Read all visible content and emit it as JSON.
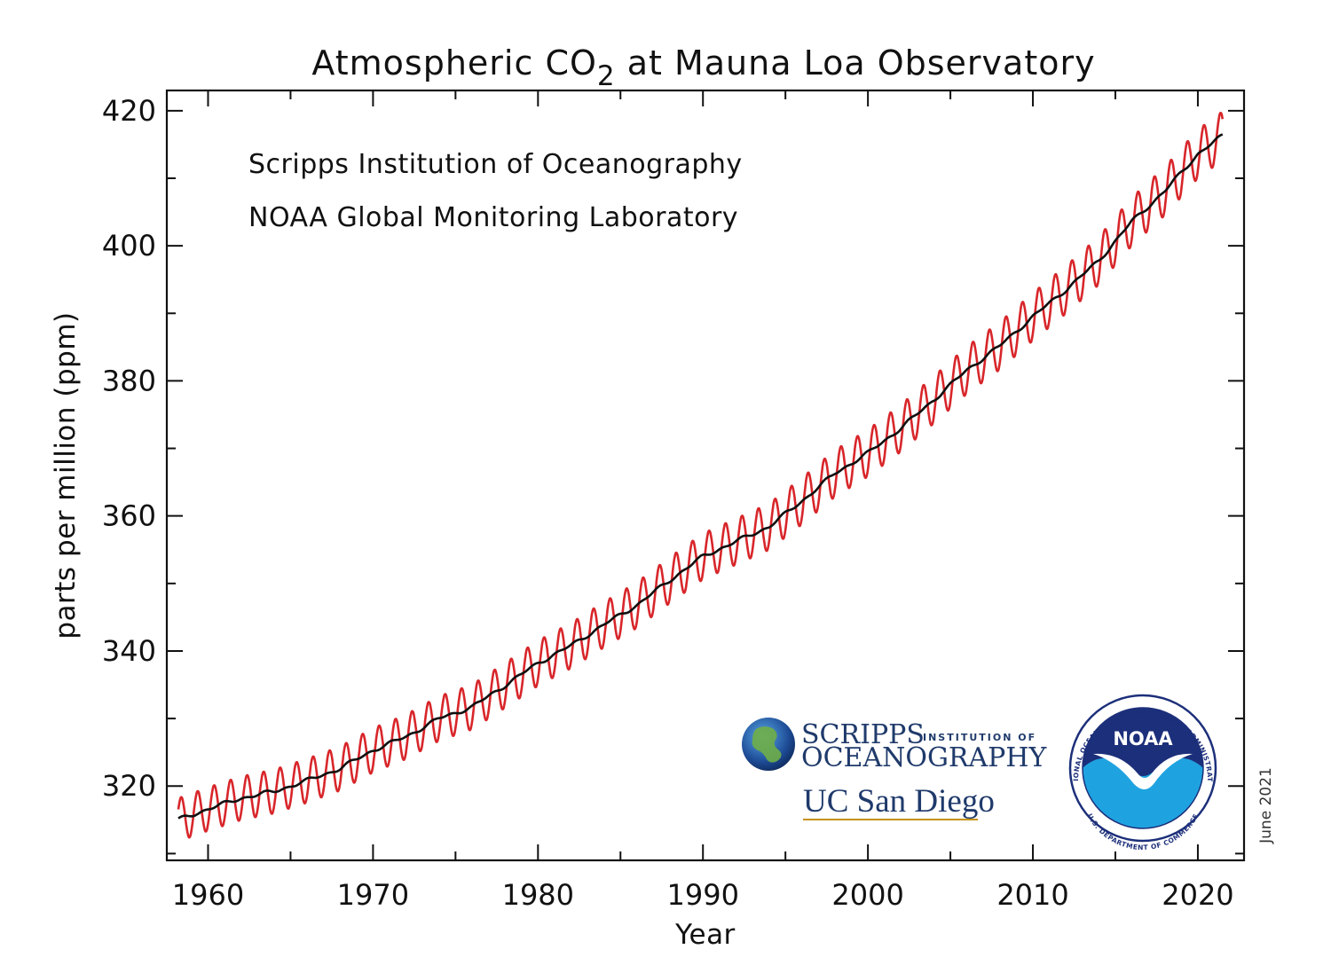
{
  "chart_data": {
    "type": "line",
    "title": "Atmospheric CO",
    "title_subscript": "2",
    "title_suffix": " at Mauna Loa Observatory",
    "credits": [
      "Scripps Institution of Oceanography",
      "NOAA Global Monitoring Laboratory"
    ],
    "xlabel": "Year",
    "ylabel": "parts per million (ppm)",
    "xlim": [
      1957.5,
      2022.8
    ],
    "ylim": [
      309,
      423
    ],
    "xticks": [
      1960,
      1970,
      1980,
      1990,
      2000,
      2010,
      2020
    ],
    "yticks": [
      320,
      340,
      360,
      380,
      400,
      420
    ],
    "xtick_labels": [
      "1960",
      "1970",
      "1980",
      "1990",
      "2000",
      "2010",
      "2020"
    ],
    "ytick_labels": [
      "320",
      "340",
      "360",
      "380",
      "400",
      "420"
    ],
    "grid": false,
    "date_note": "June 2021",
    "series": [
      {
        "color": "#d8262a",
        "style": "monthly",
        "seasonal_amplitude_ppm": 3.2,
        "x": [
          1958.2,
          2021.5
        ]
      },
      {
        "color": "#111111",
        "style": "trend",
        "x": [
          1958.2,
          1960,
          1962,
          1964,
          1966,
          1968,
          1970,
          1972,
          1974,
          1976,
          1978,
          1980,
          1982,
          1984,
          1986,
          1988,
          1990,
          1992,
          1994,
          1996,
          1998,
          2000,
          2002,
          2004,
          2006,
          2008,
          2010,
          2012,
          2014,
          2016,
          2018,
          2020,
          2021.5
        ],
        "y": [
          315.0,
          316.6,
          318.2,
          319.2,
          320.8,
          322.6,
          325.3,
          327.3,
          330.0,
          331.7,
          334.9,
          338.2,
          340.8,
          343.9,
          346.8,
          350.5,
          354.0,
          356.2,
          358.4,
          362.2,
          366.3,
          369.3,
          373.0,
          377.2,
          381.6,
          385.2,
          389.5,
          393.5,
          397.8,
          403.6,
          408.1,
          413.6,
          416.3
        ]
      }
    ]
  },
  "logos": {
    "scripps_line1": "SCRIPPS",
    "scripps_tag": "INSTITUTION OF",
    "scripps_line2": "OCEANOGRAPHY",
    "ucsd": "UC San Diego",
    "noaa_word": "NOAA",
    "noaa_ring_top": "NATIONAL OCEANIC AND ATMOSPHERIC ADMINISTRATION",
    "noaa_ring_bottom": "U.S. DEPARTMENT OF COMMERCE",
    "colors": {
      "noaa_navy": "#1c2f7a",
      "noaa_sky": "#1fa3e0",
      "scripps_navy": "#1f3a6b",
      "ucsd_gold": "#c69214"
    }
  }
}
